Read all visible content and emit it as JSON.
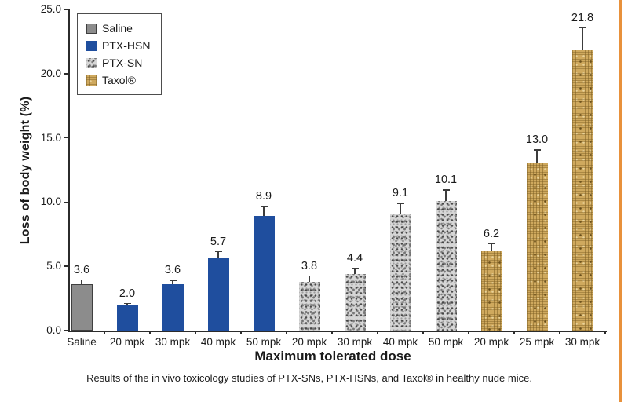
{
  "page": {
    "caption": "Results of the in vivo toxicology studies of PTX-SNs, PTX-HSNs, and Taxol® in healthy nude mice.",
    "accent_border_color": "#e8913b"
  },
  "chart_data": {
    "type": "bar",
    "title": "",
    "xlabel": "Maximum tolerated dose",
    "ylabel": "Loss of body weight (%)",
    "ylim": [
      0,
      25
    ],
    "grid": "off",
    "legend_position": "top-left",
    "ytick_values": [
      0,
      5,
      10,
      15,
      20,
      25
    ],
    "ytick_labels": [
      "0.0",
      "5.0",
      "10.0",
      "15.0",
      "20.0",
      "25.0"
    ],
    "legend": [
      {
        "label": "Saline",
        "key": "saline",
        "color": "#8c8c8c"
      },
      {
        "label": "PTX-HSN",
        "key": "ptx_hsn",
        "color": "#1f4e9e"
      },
      {
        "label": "PTX-SN",
        "key": "ptx_sn",
        "color": "#d6d6d6",
        "texture": "gray-speckle"
      },
      {
        "label": "Taxol®",
        "key": "taxol",
        "color": "#cfa95e",
        "texture": "tan-weave"
      }
    ],
    "bars": [
      {
        "category": "Saline",
        "series": "saline",
        "value": 3.6,
        "value_label": "3.6",
        "error": 0.4
      },
      {
        "category": "20 mpk",
        "series": "ptx_hsn",
        "value": 2.0,
        "value_label": "2.0",
        "error": 0.15
      },
      {
        "category": "30 mpk",
        "series": "ptx_hsn",
        "value": 3.6,
        "value_label": "3.6",
        "error": 0.35
      },
      {
        "category": "40 mpk",
        "series": "ptx_hsn",
        "value": 5.7,
        "value_label": "5.7",
        "error": 0.5
      },
      {
        "category": "50 mpk",
        "series": "ptx_hsn",
        "value": 8.9,
        "value_label": "8.9",
        "error": 0.8
      },
      {
        "category": "20 mpk",
        "series": "ptx_sn",
        "value": 3.8,
        "value_label": "3.8",
        "error": 0.5
      },
      {
        "category": "30 mpk",
        "series": "ptx_sn",
        "value": 4.4,
        "value_label": "4.4",
        "error": 0.5
      },
      {
        "category": "40 mpk",
        "series": "ptx_sn",
        "value": 9.1,
        "value_label": "9.1",
        "error": 0.85
      },
      {
        "category": "50 mpk",
        "series": "ptx_sn",
        "value": 10.1,
        "value_label": "10.1",
        "error": 0.9
      },
      {
        "category": "20 mpk",
        "series": "taxol",
        "value": 6.2,
        "value_label": "6.2",
        "error": 0.6
      },
      {
        "category": "25 mpk",
        "series": "taxol",
        "value": 13.0,
        "value_label": "13.0",
        "error": 1.1
      },
      {
        "category": "30 mpk",
        "series": "taxol",
        "value": 21.8,
        "value_label": "21.8",
        "error": 1.8
      }
    ]
  }
}
